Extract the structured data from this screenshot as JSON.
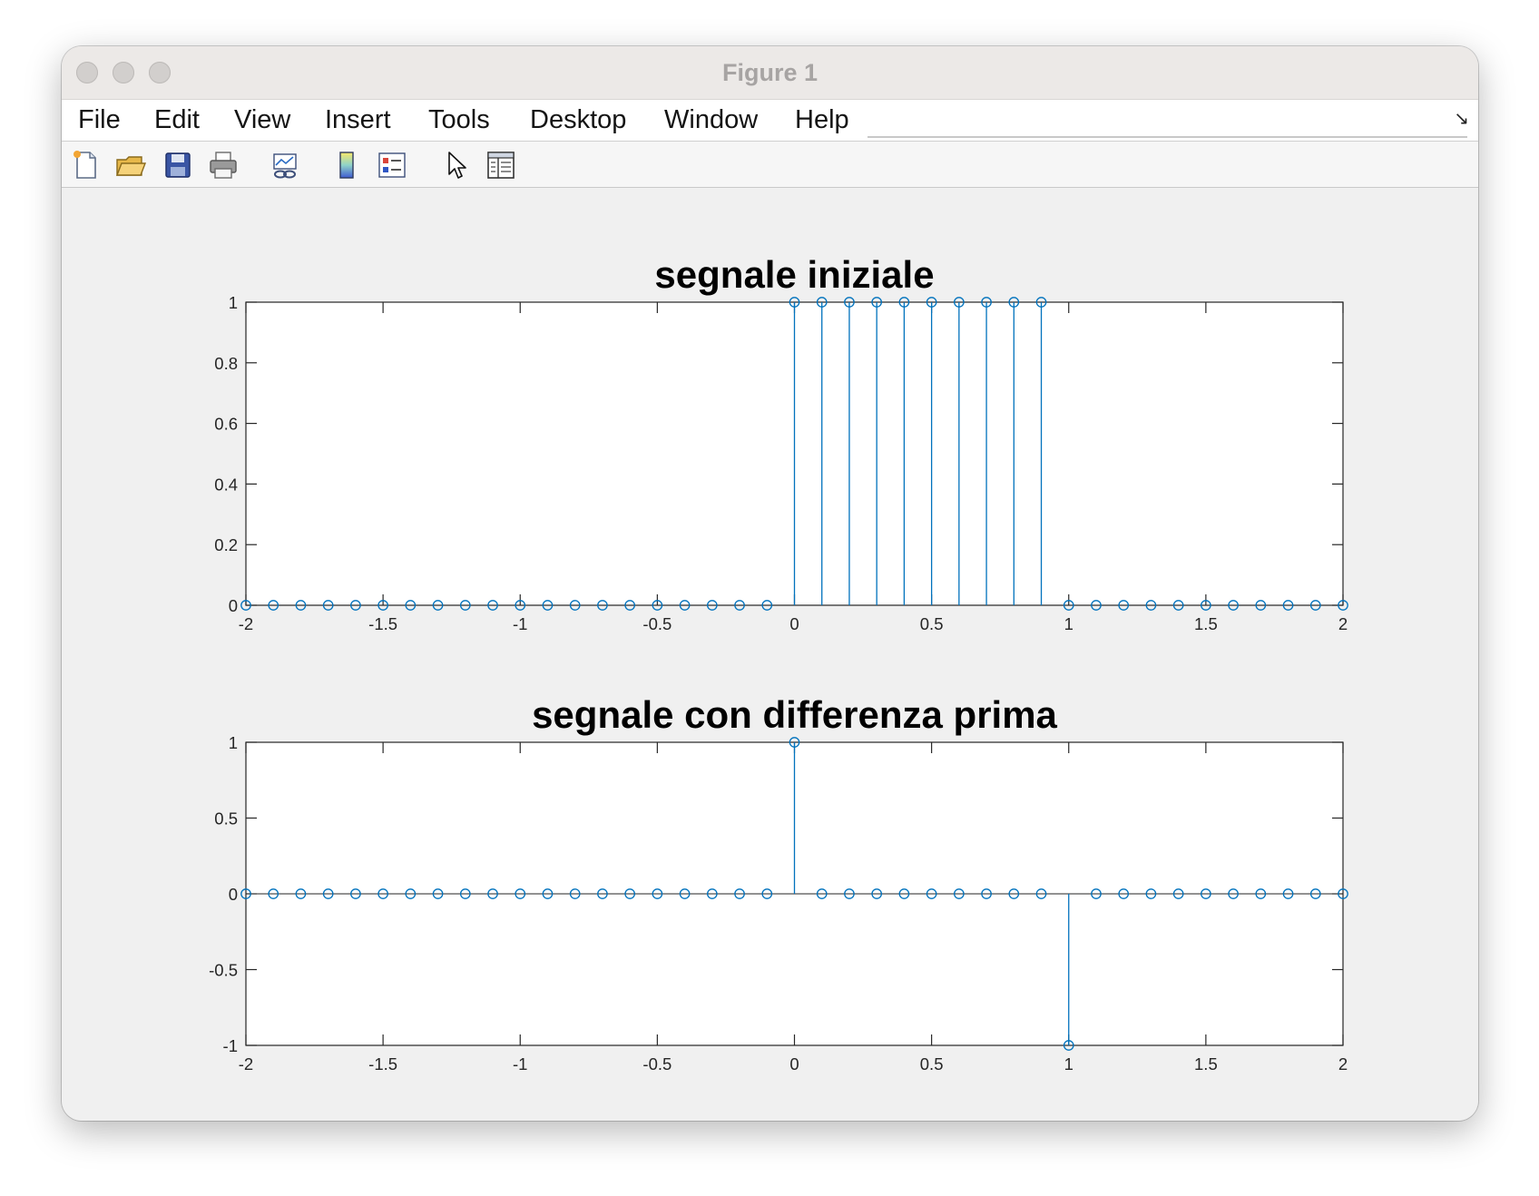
{
  "window": {
    "title": "Figure 1"
  },
  "menubar": {
    "items": [
      "File",
      "Edit",
      "View",
      "Insert",
      "Tools",
      "Desktop",
      "Window",
      "Help"
    ]
  },
  "toolbar": {
    "icons": [
      "new-figure-icon",
      "open-file-icon",
      "save-icon",
      "print-icon",
      "link-plot-icon",
      "colorbar-icon",
      "legend-icon",
      "edit-plot-pointer-icon",
      "property-inspector-icon"
    ]
  },
  "style": {
    "stem_color": "#0072bd",
    "axes_color": "#262626"
  },
  "chart_data": [
    {
      "type": "stem",
      "title": "segnale iniziale",
      "xlabel": "",
      "ylabel": "",
      "xlim": [
        -2,
        2
      ],
      "ylim": [
        0,
        1
      ],
      "xticks": [
        -2,
        -1.5,
        -1,
        -0.5,
        0,
        0.5,
        1,
        1.5,
        2
      ],
      "xtick_labels": [
        "-2",
        "-1.5",
        "-1",
        "-0.5",
        "0",
        "0.5",
        "1",
        "1.5",
        "2"
      ],
      "yticks": [
        0,
        0.2,
        0.4,
        0.6,
        0.8,
        1
      ],
      "ytick_labels": [
        "0",
        "0.2",
        "0.4",
        "0.6",
        "0.8",
        "1"
      ],
      "grid": false,
      "x": [
        -2,
        -1.9,
        -1.8,
        -1.7,
        -1.6,
        -1.5,
        -1.4,
        -1.3,
        -1.2,
        -1.1,
        -1,
        -0.9,
        -0.8,
        -0.7,
        -0.6,
        -0.5,
        -0.4,
        -0.3,
        -0.2,
        -0.1,
        0,
        0.1,
        0.2,
        0.3,
        0.4,
        0.5,
        0.6,
        0.7,
        0.8,
        0.9,
        1,
        1.1,
        1.2,
        1.3,
        1.4,
        1.5,
        1.6,
        1.7,
        1.8,
        1.9,
        2
      ],
      "y": [
        0,
        0,
        0,
        0,
        0,
        0,
        0,
        0,
        0,
        0,
        0,
        0,
        0,
        0,
        0,
        0,
        0,
        0,
        0,
        0,
        1,
        1,
        1,
        1,
        1,
        1,
        1,
        1,
        1,
        1,
        0,
        0,
        0,
        0,
        0,
        0,
        0,
        0,
        0,
        0,
        0
      ]
    },
    {
      "type": "stem",
      "title": "segnale con differenza prima",
      "xlabel": "",
      "ylabel": "",
      "xlim": [
        -2,
        2
      ],
      "ylim": [
        -1,
        1
      ],
      "xticks": [
        -2,
        -1.5,
        -1,
        -0.5,
        0,
        0.5,
        1,
        1.5,
        2
      ],
      "xtick_labels": [
        "-2",
        "-1.5",
        "-1",
        "-0.5",
        "0",
        "0.5",
        "1",
        "1.5",
        "2"
      ],
      "yticks": [
        -1,
        -0.5,
        0,
        0.5,
        1
      ],
      "ytick_labels": [
        "-1",
        "-0.5",
        "0",
        "0.5",
        "1"
      ],
      "grid": false,
      "x": [
        -2,
        -1.9,
        -1.8,
        -1.7,
        -1.6,
        -1.5,
        -1.4,
        -1.3,
        -1.2,
        -1.1,
        -1,
        -0.9,
        -0.8,
        -0.7,
        -0.6,
        -0.5,
        -0.4,
        -0.3,
        -0.2,
        -0.1,
        0,
        0.1,
        0.2,
        0.3,
        0.4,
        0.5,
        0.6,
        0.7,
        0.8,
        0.9,
        1,
        1.1,
        1.2,
        1.3,
        1.4,
        1.5,
        1.6,
        1.7,
        1.8,
        1.9,
        2
      ],
      "y": [
        0,
        0,
        0,
        0,
        0,
        0,
        0,
        0,
        0,
        0,
        0,
        0,
        0,
        0,
        0,
        0,
        0,
        0,
        0,
        0,
        1,
        0,
        0,
        0,
        0,
        0,
        0,
        0,
        0,
        0,
        -1,
        0,
        0,
        0,
        0,
        0,
        0,
        0,
        0,
        0,
        0
      ]
    }
  ]
}
